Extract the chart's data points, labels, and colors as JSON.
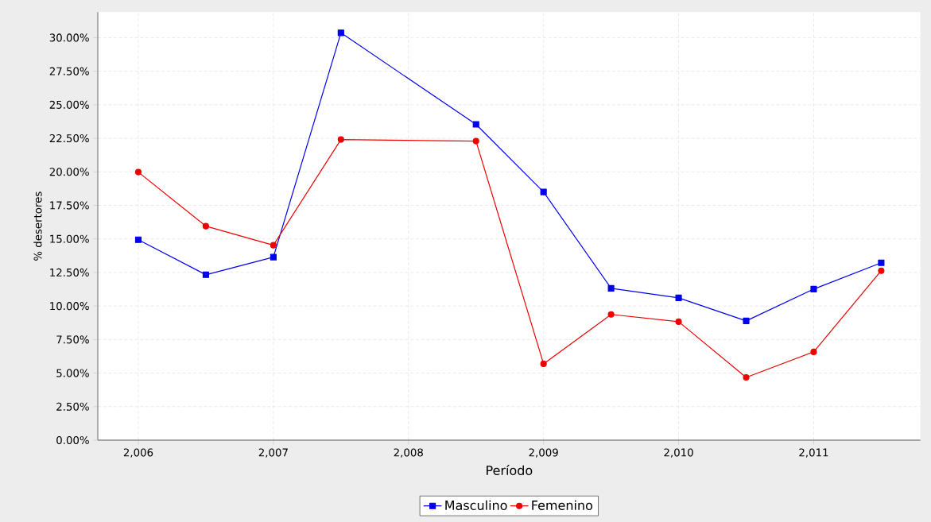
{
  "chart_data": {
    "type": "line",
    "xlabel": "Período",
    "ylabel": "% desertores",
    "x": [
      2006,
      2006.5,
      2007,
      2007.5,
      2008.5,
      2009,
      2009.5,
      2010,
      2010.5,
      2011,
      2011.5
    ],
    "series": [
      {
        "name": "Masculino",
        "color": "#0000ee",
        "marker": "square",
        "values": [
          14.94,
          12.33,
          13.64,
          30.36,
          23.54,
          18.5,
          11.32,
          10.61,
          8.89,
          11.26,
          13.22
        ]
      },
      {
        "name": "Femenino",
        "color": "#ee0000",
        "marker": "circle",
        "values": [
          19.98,
          15.95,
          14.53,
          22.41,
          22.29,
          5.69,
          9.37,
          8.83,
          4.68,
          6.58,
          12.63
        ]
      }
    ],
    "xlim": [
      2005.7,
      2011.79
    ],
    "ylim": [
      0,
      31.9
    ],
    "xticks": [
      {
        "value": 2006,
        "label": "2,006"
      },
      {
        "value": 2007,
        "label": "2,007"
      },
      {
        "value": 2008,
        "label": "2,008"
      },
      {
        "value": 2009,
        "label": "2,009"
      },
      {
        "value": 2010,
        "label": "2,010"
      },
      {
        "value": 2011,
        "label": "2,011"
      }
    ],
    "yticks": [
      {
        "value": 0,
        "label": "0.00%"
      },
      {
        "value": 2.5,
        "label": "2.50%"
      },
      {
        "value": 5,
        "label": "5.00%"
      },
      {
        "value": 7.5,
        "label": "7.50%"
      },
      {
        "value": 10,
        "label": "10.00%"
      },
      {
        "value": 12.5,
        "label": "12.50%"
      },
      {
        "value": 15,
        "label": "15.00%"
      },
      {
        "value": 17.5,
        "label": "17.50%"
      },
      {
        "value": 20,
        "label": "20.00%"
      },
      {
        "value": 22.5,
        "label": "22.50%"
      },
      {
        "value": 25,
        "label": "25.00%"
      },
      {
        "value": 27.5,
        "label": "27.50%"
      },
      {
        "value": 30,
        "label": "30.00%"
      }
    ],
    "grid": true,
    "legend": "bottom",
    "line_style": "solid"
  }
}
